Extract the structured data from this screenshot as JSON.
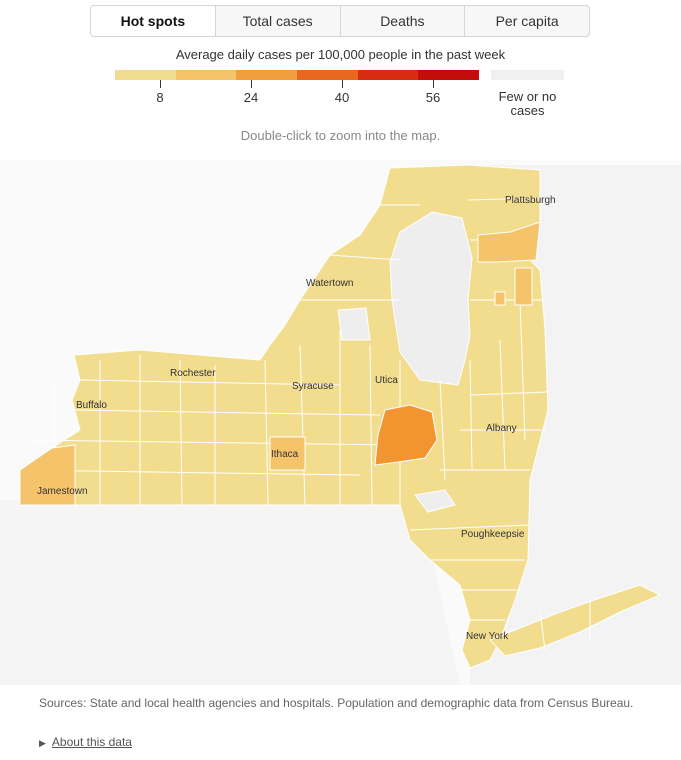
{
  "tabs": [
    {
      "label": "Hot spots",
      "active": true
    },
    {
      "label": "Total cases",
      "active": false
    },
    {
      "label": "Deaths",
      "active": false
    },
    {
      "label": "Per capita",
      "active": false
    }
  ],
  "legend": {
    "title": "Average daily cases per 100,000 people in the past week",
    "ticks": [
      "8",
      "24",
      "40",
      "56"
    ],
    "colors": [
      "#f2dd8f",
      "#f5c36a",
      "#f29e3c",
      "#e8681f",
      "#d62d10",
      "#c20d0a"
    ],
    "no_cases_label": "Few or no cases",
    "no_cases_color": "#f0f0f0"
  },
  "hint": "Double-click to zoom into the map.",
  "map": {
    "cities": [
      "Plattsburgh",
      "Watertown",
      "Rochester",
      "Syracuse",
      "Utica",
      "Buffalo",
      "Albany",
      "Ithaca",
      "Jamestown",
      "Poughkeepsie",
      "New York"
    ]
  },
  "footer": {
    "sources": "Sources: State and local health agencies and hospitals. Population and demographic data from Census Bureau.",
    "about": "About this data"
  }
}
